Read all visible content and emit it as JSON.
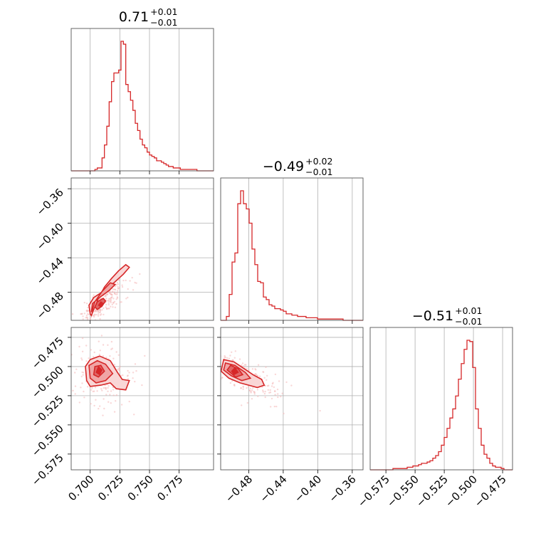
{
  "chart_data": {
    "type": "corner",
    "color": "#d62728",
    "parameters": [
      {
        "title_value": "0.71",
        "title_plus": "+0.01",
        "title_minus": "−0.01",
        "range": [
          0.684,
          0.804
        ],
        "ticks": [
          0.7,
          0.725,
          0.75,
          0.775
        ],
        "tick_labels": [
          "0.700",
          "0.725",
          "0.750",
          "0.775"
        ],
        "hist_edges": [
          0.684,
          0.804
        ],
        "hist_counts": [
          0,
          0,
          0,
          0,
          0,
          0,
          0,
          0,
          0,
          0,
          1,
          2,
          2,
          9,
          18,
          31,
          48,
          62,
          68,
          68,
          70,
          90,
          88,
          60,
          55,
          49,
          42,
          33,
          28,
          22,
          18,
          16,
          13,
          11,
          10,
          9,
          7,
          7,
          6,
          5,
          4,
          3,
          3,
          2,
          2,
          2,
          1,
          1,
          1,
          1,
          1,
          1,
          1,
          0,
          0,
          0,
          0,
          0,
          0,
          0
        ]
      },
      {
        "title_value": "−0.49",
        "title_plus": "+0.02",
        "title_minus": "−0.01",
        "range": [
          -0.5125,
          -0.3475
        ],
        "ticks": [
          -0.48,
          -0.44,
          -0.4,
          -0.36
        ],
        "tick_labels": [
          "−0.48",
          "−0.44",
          "−0.40",
          "−0.36"
        ],
        "hist_counts": [
          0,
          0,
          3,
          20,
          45,
          52,
          90,
          100,
          90,
          86,
          75,
          55,
          43,
          30,
          29,
          18,
          16,
          12,
          11,
          9,
          9,
          8,
          7,
          5,
          5,
          4,
          4,
          3,
          3,
          3,
          2,
          2,
          2,
          2,
          1,
          1,
          1,
          1,
          1,
          1,
          1,
          1,
          1,
          0,
          0,
          0,
          0,
          0,
          0,
          0
        ]
      },
      {
        "title_value": "−0.51",
        "title_plus": "+0.01",
        "title_minus": "−0.01",
        "range": [
          -0.5885,
          -0.4665
        ],
        "ticks": [
          -0.575,
          -0.55,
          -0.525,
          -0.5,
          -0.475
        ],
        "tick_labels": [
          "−0.575",
          "−0.550",
          "−0.525",
          "−0.500",
          "−0.475"
        ],
        "hist_counts": [
          0,
          0,
          0,
          0,
          0,
          0,
          0,
          0,
          1,
          1,
          1,
          1,
          1,
          2,
          2,
          3,
          3,
          4,
          5,
          5,
          6,
          7,
          9,
          11,
          14,
          19,
          25,
          32,
          40,
          47,
          57,
          70,
          82,
          93,
          100,
          99,
          79,
          47,
          32,
          19,
          12,
          9,
          5,
          3,
          2,
          2,
          1,
          0,
          0,
          0
        ]
      }
    ],
    "scatter_pairs": [
      {
        "row": 1,
        "col": 0,
        "center": [
          0.709,
          -0.495
        ],
        "spread": [
          0.01,
          0.014
        ],
        "corr": 0.85,
        "n": 260
      },
      {
        "row": 2,
        "col": 0,
        "center": [
          0.711,
          -0.507
        ],
        "spread": [
          0.012,
          0.012
        ],
        "corr": -0.05,
        "n": 220
      },
      {
        "row": 2,
        "col": 1,
        "center": [
          -0.485,
          -0.509
        ],
        "spread": [
          0.022,
          0.012
        ],
        "corr": -0.75,
        "n": 220
      }
    ],
    "contours": {
      "1-0": {
        "outer": [
          [
            0.7,
            -0.505
          ],
          [
            0.699,
            -0.495
          ],
          [
            0.703,
            -0.486
          ],
          [
            0.712,
            -0.478
          ],
          [
            0.72,
            -0.469
          ],
          [
            0.728,
            -0.459
          ],
          [
            0.733,
            -0.451
          ],
          [
            0.73,
            -0.448
          ],
          [
            0.724,
            -0.455
          ],
          [
            0.718,
            -0.464
          ],
          [
            0.712,
            -0.474
          ],
          [
            0.707,
            -0.487
          ],
          [
            0.703,
            -0.5
          ],
          [
            0.701,
            -0.507
          ]
        ],
        "mid": [
          [
            0.701,
            -0.503
          ],
          [
            0.702,
            -0.493
          ],
          [
            0.708,
            -0.486
          ],
          [
            0.716,
            -0.478
          ],
          [
            0.721,
            -0.471
          ],
          [
            0.717,
            -0.469
          ],
          [
            0.71,
            -0.479
          ],
          [
            0.704,
            -0.491
          ],
          [
            0.702,
            -0.5
          ]
        ],
        "inner": [
          [
            0.704,
            -0.497
          ],
          [
            0.706,
            -0.491
          ],
          [
            0.711,
            -0.487
          ],
          [
            0.713,
            -0.49
          ],
          [
            0.71,
            -0.496
          ],
          [
            0.706,
            -0.5
          ]
        ],
        "core": [
          [
            0.707,
            -0.495
          ],
          [
            0.709,
            -0.491
          ],
          [
            0.711,
            -0.493
          ],
          [
            0.709,
            -0.497
          ]
        ]
      },
      "2-0": {
        "outer": [
          [
            0.697,
            -0.512
          ],
          [
            0.696,
            -0.5
          ],
          [
            0.7,
            -0.494
          ],
          [
            0.708,
            -0.491
          ],
          [
            0.717,
            -0.495
          ],
          [
            0.723,
            -0.505
          ],
          [
            0.727,
            -0.511
          ],
          [
            0.733,
            -0.512
          ],
          [
            0.73,
            -0.52
          ],
          [
            0.722,
            -0.519
          ],
          [
            0.717,
            -0.514
          ],
          [
            0.709,
            -0.516
          ],
          [
            0.7,
            -0.517
          ]
        ],
        "mid": [
          [
            0.7,
            -0.51
          ],
          [
            0.699,
            -0.499
          ],
          [
            0.706,
            -0.495
          ],
          [
            0.713,
            -0.498
          ],
          [
            0.719,
            -0.506
          ],
          [
            0.713,
            -0.512
          ],
          [
            0.705,
            -0.514
          ]
        ],
        "inner": [
          [
            0.703,
            -0.507
          ],
          [
            0.704,
            -0.5
          ],
          [
            0.709,
            -0.499
          ],
          [
            0.712,
            -0.504
          ],
          [
            0.707,
            -0.509
          ]
        ],
        "core": [
          [
            0.705,
            -0.505
          ],
          [
            0.707,
            -0.5
          ],
          [
            0.71,
            -0.503
          ],
          [
            0.708,
            -0.507
          ]
        ]
      },
      "2-1": {
        "outer": [
          [
            -0.512,
            -0.504
          ],
          [
            -0.509,
            -0.494
          ],
          [
            -0.497,
            -0.496
          ],
          [
            -0.483,
            -0.503
          ],
          [
            -0.475,
            -0.507
          ],
          [
            -0.465,
            -0.511
          ],
          [
            -0.462,
            -0.516
          ],
          [
            -0.47,
            -0.518
          ],
          [
            -0.48,
            -0.516
          ],
          [
            -0.49,
            -0.514
          ],
          [
            -0.503,
            -0.51
          ]
        ],
        "mid": [
          [
            -0.509,
            -0.503
          ],
          [
            -0.507,
            -0.497
          ],
          [
            -0.496,
            -0.499
          ],
          [
            -0.484,
            -0.505
          ],
          [
            -0.478,
            -0.51
          ],
          [
            -0.488,
            -0.512
          ],
          [
            -0.5,
            -0.508
          ]
        ],
        "inner": [
          [
            -0.505,
            -0.503
          ],
          [
            -0.501,
            -0.499
          ],
          [
            -0.492,
            -0.502
          ],
          [
            -0.487,
            -0.507
          ],
          [
            -0.495,
            -0.509
          ]
        ],
        "core": [
          [
            -0.5,
            -0.504
          ],
          [
            -0.496,
            -0.501
          ],
          [
            -0.492,
            -0.505
          ],
          [
            -0.497,
            -0.507
          ]
        ]
      }
    },
    "grid": true
  }
}
